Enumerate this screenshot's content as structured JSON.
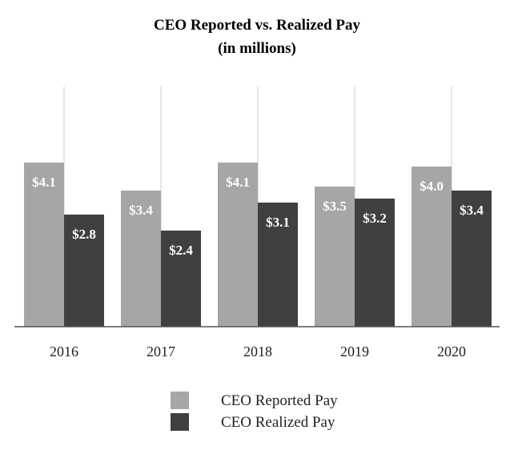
{
  "chart_data": {
    "type": "bar",
    "title": "CEO Reported vs. Realized Pay",
    "subtitle": "(in millions)",
    "categories": [
      "2016",
      "2017",
      "2018",
      "2019",
      "2020"
    ],
    "series": [
      {
        "name": "CEO Reported Pay",
        "color": "#a6a6a6",
        "values": [
          4.1,
          3.4,
          4.1,
          3.5,
          4.0
        ],
        "labels": [
          "$4.1",
          "$3.4",
          "$4.1",
          "$3.5",
          "$4.0"
        ]
      },
      {
        "name": "CEO Realized Pay",
        "color": "#404040",
        "values": [
          2.8,
          2.4,
          3.1,
          3.2,
          3.4
        ],
        "labels": [
          "$2.8",
          "$2.4",
          "$3.1",
          "$3.2",
          "$3.4"
        ]
      }
    ],
    "ylim": [
      0,
      6
    ],
    "grid": false,
    "legend_position": "bottom"
  }
}
